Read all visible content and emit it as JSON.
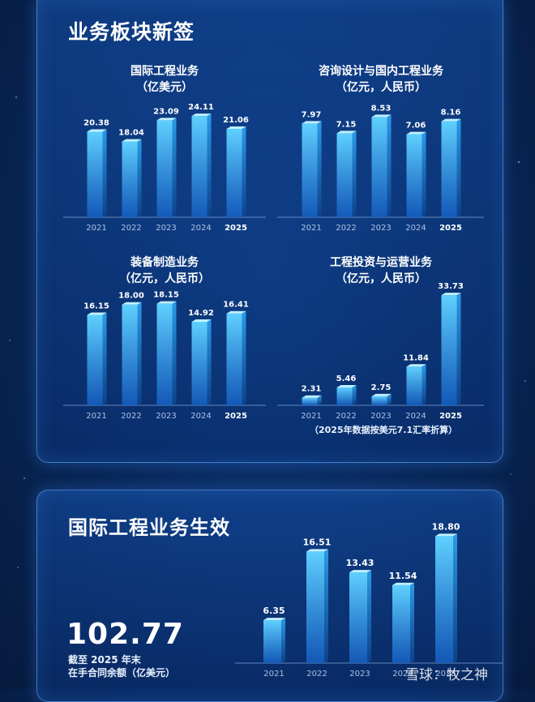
{
  "section1": {
    "title": "业务板块新签"
  },
  "section2": {
    "title": "国际工程业务生效"
  },
  "note": "（2025年数据按美元7.1汇率折算）",
  "backlog": {
    "value": "102.77",
    "line1": "截至 2025 年末",
    "line2": "在手合同余额（亿美元）"
  },
  "watermark": "雪球：牧之神",
  "colors": {
    "bar_top": "#6fd6ff",
    "bar_bottom": "#1a6fd0",
    "background": "#0a2a5e"
  },
  "chart_data": [
    {
      "type": "bar",
      "title": "国际工程业务",
      "subtitle": "（亿美元）",
      "categories": [
        "2021",
        "2022",
        "2023",
        "2024",
        "2025"
      ],
      "values": [
        20.38,
        18.04,
        23.09,
        24.11,
        21.06
      ],
      "value_labels": [
        "20.38",
        "18.04",
        "23.09",
        "24.11",
        "21.06"
      ],
      "ylim": [
        0,
        28
      ]
    },
    {
      "type": "bar",
      "title": "咨询设计与国内工程业务",
      "subtitle": "（亿元，人民币）",
      "categories": [
        "2021",
        "2022",
        "2023",
        "2024",
        "2025"
      ],
      "values": [
        7.97,
        7.15,
        8.53,
        7.06,
        8.16
      ],
      "value_labels": [
        "7.97",
        "7.15",
        "8.53",
        "7.06",
        "8.16"
      ],
      "ylim": [
        0,
        10
      ]
    },
    {
      "type": "bar",
      "title": "装备制造业务",
      "subtitle": "（亿元，人民币）",
      "categories": [
        "2021",
        "2022",
        "2023",
        "2024",
        "2025"
      ],
      "values": [
        16.15,
        18.0,
        18.15,
        14.92,
        16.41
      ],
      "value_labels": [
        "16.15",
        "18.00",
        "18.15",
        "14.92",
        "16.41"
      ],
      "ylim": [
        0,
        21
      ]
    },
    {
      "type": "bar",
      "title": "工程投资与运营业务",
      "subtitle": "（亿元，人民币）",
      "categories": [
        "2021",
        "2022",
        "2023",
        "2024",
        "2025"
      ],
      "values": [
        2.31,
        5.46,
        2.75,
        11.84,
        33.73
      ],
      "value_labels": [
        "2.31",
        "5.46",
        "2.75",
        "11.84",
        "33.73"
      ],
      "ylim": [
        0,
        36
      ]
    },
    {
      "type": "bar",
      "title": "国际工程业务生效",
      "categories": [
        "2021",
        "2022",
        "2023",
        "2024",
        "2025"
      ],
      "values": [
        6.35,
        16.51,
        13.43,
        11.54,
        18.8
      ],
      "value_labels": [
        "6.35",
        "16.51",
        "13.43",
        "11.54",
        "18.80"
      ],
      "ylim": [
        0,
        21
      ]
    }
  ]
}
